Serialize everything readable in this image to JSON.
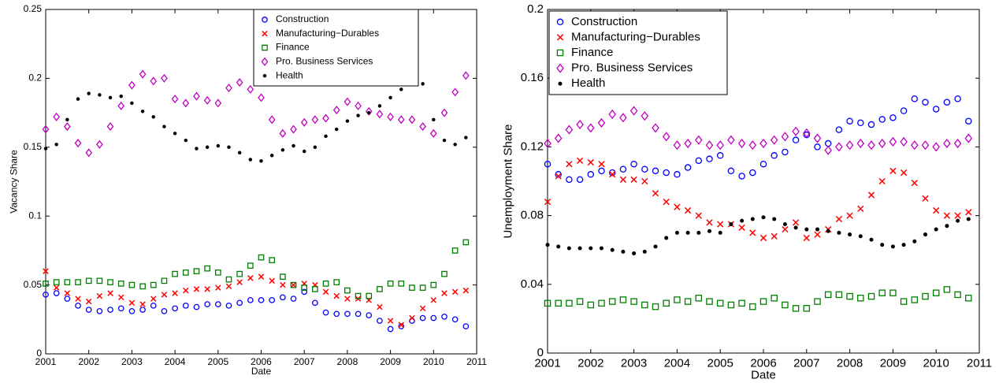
{
  "chart_data": [
    {
      "type": "scatter",
      "xlabel": "Date",
      "ylabel": "Vacancy Share",
      "x": [
        2001,
        2001.25,
        2001.5,
        2001.75,
        2002,
        2002.25,
        2002.5,
        2002.75,
        2003,
        2003.25,
        2003.5,
        2003.75,
        2004,
        2004.25,
        2004.5,
        2004.75,
        2005,
        2005.25,
        2005.5,
        2005.75,
        2006,
        2006.25,
        2006.5,
        2006.75,
        2007,
        2007.25,
        2007.5,
        2007.75,
        2008,
        2008.25,
        2008.5,
        2008.75,
        2009,
        2009.25,
        2009.5,
        2009.75,
        2010,
        2010.25,
        2010.5,
        2010.75
      ],
      "xlim": [
        2001,
        2011
      ],
      "xticks": [
        2001,
        2002,
        2003,
        2004,
        2005,
        2006,
        2007,
        2008,
        2009,
        2010,
        2011
      ],
      "ylim": [
        0,
        0.25
      ],
      "yticks": [
        0,
        0.05,
        0.1,
        0.15,
        0.2,
        0.25
      ],
      "grid": false,
      "legend": "top-center",
      "series": [
        {
          "name": "Construction",
          "color": "#0000ff",
          "marker": "circle",
          "values": [
            0.043,
            0.044,
            0.04,
            0.035,
            0.032,
            0.031,
            0.032,
            0.033,
            0.031,
            0.032,
            0.035,
            0.031,
            0.033,
            0.035,
            0.034,
            0.036,
            0.036,
            0.035,
            0.037,
            0.039,
            0.039,
            0.039,
            0.041,
            0.04,
            0.045,
            0.037,
            0.03,
            0.029,
            0.029,
            0.029,
            0.028,
            0.024,
            0.018,
            0.02,
            0.024,
            0.026,
            0.026,
            0.027,
            0.025,
            0.02
          ]
        },
        {
          "name": "Manufacturing−Durables",
          "color": "#ff0000",
          "marker": "x",
          "values": [
            0.06,
            0.048,
            0.044,
            0.04,
            0.038,
            0.042,
            0.044,
            0.041,
            0.037,
            0.036,
            0.04,
            0.043,
            0.044,
            0.046,
            0.047,
            0.047,
            0.048,
            0.049,
            0.052,
            0.055,
            0.056,
            0.053,
            0.05,
            0.05,
            0.051,
            0.05,
            0.045,
            0.042,
            0.04,
            0.04,
            0.039,
            0.034,
            0.024,
            0.021,
            0.026,
            0.033,
            0.039,
            0.044,
            0.045,
            0.046
          ]
        },
        {
          "name": "Finance",
          "color": "#008000",
          "marker": "square",
          "values": [
            0.051,
            0.052,
            0.052,
            0.052,
            0.053,
            0.053,
            0.052,
            0.051,
            0.05,
            0.049,
            0.05,
            0.053,
            0.058,
            0.059,
            0.06,
            0.062,
            0.059,
            0.054,
            0.058,
            0.064,
            0.07,
            0.068,
            0.056,
            0.05,
            0.048,
            0.047,
            0.051,
            0.052,
            0.046,
            0.042,
            0.042,
            0.047,
            0.051,
            0.051,
            0.048,
            0.048,
            0.05,
            0.058,
            0.075,
            0.081
          ]
        },
        {
          "name": "Pro. Business Services",
          "color": "#c000c0",
          "marker": "diamond",
          "values": [
            0.163,
            0.172,
            0.165,
            0.153,
            0.146,
            0.152,
            0.165,
            0.18,
            0.195,
            0.203,
            0.198,
            0.2,
            0.185,
            0.182,
            0.187,
            0.184,
            0.182,
            0.193,
            0.197,
            0.192,
            0.186,
            0.17,
            0.16,
            0.163,
            0.168,
            0.17,
            0.171,
            0.177,
            0.183,
            0.18,
            0.176,
            0.174,
            0.172,
            0.17,
            0.17,
            0.165,
            0.16,
            0.175,
            0.19,
            0.202
          ]
        },
        {
          "name": "Health",
          "color": "#000000",
          "marker": "dot",
          "values": [
            0.149,
            0.152,
            0.17,
            0.185,
            0.189,
            0.188,
            0.186,
            0.187,
            0.182,
            0.176,
            0.172,
            0.165,
            0.16,
            0.155,
            0.149,
            0.15,
            0.151,
            0.15,
            0.146,
            0.141,
            0.14,
            0.144,
            0.148,
            0.151,
            0.147,
            0.15,
            0.158,
            0.163,
            0.169,
            0.173,
            0.175,
            0.18,
            0.186,
            0.192,
            0.199,
            0.196,
            0.17,
            0.155,
            0.152,
            0.157
          ]
        }
      ]
    },
    {
      "type": "scatter",
      "xlabel": "Date",
      "ylabel": "Unemployment Share",
      "x": [
        2001,
        2001.25,
        2001.5,
        2001.75,
        2002,
        2002.25,
        2002.5,
        2002.75,
        2003,
        2003.25,
        2003.5,
        2003.75,
        2004,
        2004.25,
        2004.5,
        2004.75,
        2005,
        2005.25,
        2005.5,
        2005.75,
        2006,
        2006.25,
        2006.5,
        2006.75,
        2007,
        2007.25,
        2007.5,
        2007.75,
        2008,
        2008.25,
        2008.5,
        2008.75,
        2009,
        2009.25,
        2009.5,
        2009.75,
        2010,
        2010.25,
        2010.5,
        2010.75
      ],
      "xlim": [
        2001,
        2011
      ],
      "xticks": [
        2001,
        2002,
        2003,
        2004,
        2005,
        2006,
        2007,
        2008,
        2009,
        2010,
        2011
      ],
      "ylim": [
        0,
        0.2
      ],
      "yticks": [
        0,
        0.04,
        0.08,
        0.12,
        0.16,
        0.2
      ],
      "grid": false,
      "legend": "top-left",
      "series": [
        {
          "name": "Construction",
          "color": "#0000ff",
          "marker": "circle",
          "values": [
            0.11,
            0.104,
            0.101,
            0.101,
            0.104,
            0.106,
            0.105,
            0.107,
            0.11,
            0.107,
            0.106,
            0.105,
            0.104,
            0.108,
            0.112,
            0.113,
            0.115,
            0.106,
            0.103,
            0.105,
            0.11,
            0.115,
            0.117,
            0.124,
            0.127,
            0.12,
            0.122,
            0.13,
            0.135,
            0.134,
            0.133,
            0.136,
            0.137,
            0.141,
            0.148,
            0.146,
            0.142,
            0.146,
            0.148,
            0.135
          ]
        },
        {
          "name": "Manufacturing−Durables",
          "color": "#ff0000",
          "marker": "x",
          "values": [
            0.088,
            0.103,
            0.11,
            0.112,
            0.111,
            0.11,
            0.104,
            0.101,
            0.101,
            0.1,
            0.093,
            0.088,
            0.085,
            0.083,
            0.08,
            0.076,
            0.075,
            0.075,
            0.073,
            0.07,
            0.067,
            0.068,
            0.072,
            0.076,
            0.067,
            0.069,
            0.072,
            0.078,
            0.08,
            0.084,
            0.092,
            0.1,
            0.106,
            0.105,
            0.099,
            0.09,
            0.083,
            0.08,
            0.08,
            0.082
          ]
        },
        {
          "name": "Finance",
          "color": "#008000",
          "marker": "square",
          "values": [
            0.029,
            0.029,
            0.029,
            0.03,
            0.028,
            0.029,
            0.03,
            0.031,
            0.03,
            0.028,
            0.027,
            0.029,
            0.031,
            0.03,
            0.032,
            0.03,
            0.029,
            0.028,
            0.029,
            0.027,
            0.03,
            0.032,
            0.028,
            0.026,
            0.026,
            0.03,
            0.034,
            0.034,
            0.033,
            0.032,
            0.033,
            0.035,
            0.035,
            0.03,
            0.031,
            0.033,
            0.035,
            0.037,
            0.034,
            0.032
          ]
        },
        {
          "name": "Pro. Business Services",
          "color": "#c000c0",
          "marker": "diamond",
          "values": [
            0.122,
            0.125,
            0.13,
            0.133,
            0.131,
            0.134,
            0.139,
            0.137,
            0.141,
            0.138,
            0.131,
            0.126,
            0.121,
            0.122,
            0.124,
            0.121,
            0.121,
            0.124,
            0.122,
            0.121,
            0.122,
            0.124,
            0.126,
            0.129,
            0.128,
            0.125,
            0.118,
            0.12,
            0.121,
            0.122,
            0.121,
            0.122,
            0.123,
            0.123,
            0.121,
            0.121,
            0.12,
            0.122,
            0.122,
            0.125
          ]
        },
        {
          "name": "Health",
          "color": "#000000",
          "marker": "dot",
          "values": [
            0.063,
            0.062,
            0.061,
            0.061,
            0.061,
            0.061,
            0.06,
            0.059,
            0.058,
            0.059,
            0.062,
            0.067,
            0.07,
            0.07,
            0.07,
            0.071,
            0.07,
            0.075,
            0.077,
            0.078,
            0.079,
            0.078,
            0.075,
            0.073,
            0.072,
            0.072,
            0.071,
            0.07,
            0.069,
            0.068,
            0.066,
            0.063,
            0.062,
            0.063,
            0.065,
            0.069,
            0.072,
            0.074,
            0.077,
            0.078
          ]
        }
      ]
    }
  ]
}
